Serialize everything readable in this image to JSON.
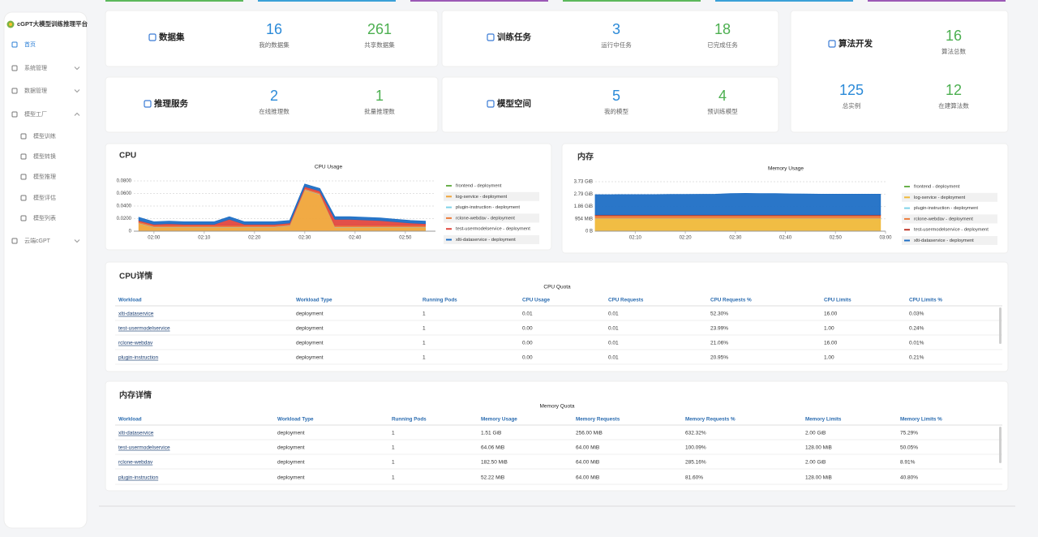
{
  "sidebar": {
    "title": "cGPT大模型训练推理平台",
    "menu": [
      "首页",
      "系统管理",
      "数据管理",
      "模型工厂",
      "模型训练",
      "模型转换",
      "模型推理",
      "模型评估",
      "模型列表",
      "云端cGPT"
    ]
  },
  "stats": [
    {
      "title": "数据集",
      "items": [
        {
          "value": 16,
          "label": "我的数据集"
        },
        {
          "value": 261,
          "label": "共享数据集"
        }
      ]
    },
    {
      "title": "训练任务",
      "items": [
        {
          "value": 3,
          "label": "运行中任务"
        },
        {
          "value": 18,
          "label": "已完成任务"
        }
      ]
    },
    {
      "title": "算法开发",
      "items": [
        {
          "value": 16,
          "label": "算法总数"
        },
        {
          "value": 125,
          "label": "总实例"
        },
        {
          "value": 12,
          "label": "在建算法数"
        }
      ]
    },
    {
      "title": "推理服务",
      "items": [
        {
          "value": 2,
          "label": "在线推理数"
        },
        {
          "value": 1,
          "label": "批量推理数"
        }
      ]
    },
    {
      "title": "模型空间",
      "items": [
        {
          "value": 5,
          "label": "我的模型"
        },
        {
          "value": 4,
          "label": "预训练模型"
        }
      ]
    }
  ],
  "panels": {
    "cpu": "CPU",
    "memory": "内存"
  },
  "chart_data": [
    {
      "type": "area",
      "title": "CPU Usage",
      "stacked": true,
      "grid": true,
      "x": [
        "01:57",
        "02:00",
        "02:03",
        "02:06",
        "02:09",
        "02:12",
        "02:15",
        "02:18",
        "02:21",
        "02:24",
        "02:27",
        "02:30",
        "02:33",
        "02:36",
        "02:39",
        "02:42",
        "02:45",
        "02:48",
        "02:51",
        "02:54"
      ],
      "xlim": [
        "01:56",
        "02:56"
      ],
      "xticks": [
        "02:00",
        "02:10",
        "02:20",
        "02:30",
        "02:40",
        "02:50"
      ],
      "ylim": [
        0,
        0.08
      ],
      "yticks": [
        0,
        {
          "value": 0.02,
          "label": "0.0200"
        },
        {
          "value": 0.04,
          "label": "0.0400"
        },
        {
          "value": 0.06,
          "label": "0.0600"
        },
        {
          "value": 0.08,
          "label": "0.0800"
        }
      ],
      "series": [
        {
          "name": "frontend - deployment",
          "color": "#6ab04c",
          "values": [
            0.0005,
            0.0005,
            0.0005,
            0.0005,
            0.0005,
            0.0005,
            0.0005,
            0.0005,
            0.0005,
            0.0005,
            0.0005,
            0.0005,
            0.0005,
            0.0005,
            0.0005,
            0.0005,
            0.0005,
            0.0005,
            0.0005,
            0.0005
          ]
        },
        {
          "name": "log-service - deployment",
          "color": "#f0a53a",
          "values": [
            0.012,
            0.006,
            0.006,
            0.006,
            0.006,
            0.006,
            0.006,
            0.006,
            0.006,
            0.006,
            0.008,
            0.065,
            0.058,
            0.006,
            0.006,
            0.006,
            0.006,
            0.006,
            0.006,
            0.006
          ]
        },
        {
          "name": "plugin-instruction - deployment",
          "color": "#7fd3e8",
          "values": [
            0.0005,
            0.0005,
            0.0005,
            0.0005,
            0.0005,
            0.0005,
            0.0005,
            0.0005,
            0.0005,
            0.0005,
            0.0005,
            0.0005,
            0.0005,
            0.0005,
            0.0005,
            0.0005,
            0.0005,
            0.0005,
            0.0005,
            0.0005
          ]
        },
        {
          "name": "rclone-webdav - deployment",
          "color": "#ee7d3b",
          "values": [
            0.002,
            0.002,
            0.002,
            0.002,
            0.002,
            0.002,
            0.002,
            0.002,
            0.002,
            0.002,
            0.002,
            0.002,
            0.002,
            0.002,
            0.002,
            0.002,
            0.002,
            0.002,
            0.002,
            0.002
          ]
        },
        {
          "name": "test-usermodelservice - deployment",
          "color": "#e2473f",
          "values": [
            0.002,
            0.002,
            0.003,
            0.002,
            0.002,
            0.002,
            0.01,
            0.002,
            0.002,
            0.002,
            0.002,
            0.003,
            0.003,
            0.01,
            0.01,
            0.009,
            0.008,
            0.006,
            0.004,
            0.003
          ]
        },
        {
          "name": "xlti-dataservice - deployment",
          "color": "#1f6fc5",
          "values": [
            0.005,
            0.004,
            0.004,
            0.004,
            0.004,
            0.004,
            0.004,
            0.004,
            0.004,
            0.004,
            0.004,
            0.004,
            0.004,
            0.004,
            0.004,
            0.004,
            0.004,
            0.004,
            0.004,
            0.004
          ]
        }
      ]
    },
    {
      "type": "area",
      "title": "Memory Usage",
      "stacked": true,
      "grid": true,
      "x": [
        "02:02",
        "02:05",
        "02:08",
        "02:11",
        "02:14",
        "02:17",
        "02:20",
        "02:23",
        "02:26",
        "02:29",
        "02:32",
        "02:35",
        "02:38",
        "02:41",
        "02:44",
        "02:47",
        "02:50",
        "02:53",
        "02:56",
        "02:59"
      ],
      "xlim": [
        "02:02",
        "03:00"
      ],
      "xticks": [
        "02:10",
        "02:20",
        "02:30",
        "02:40",
        "02:50",
        "03:00"
      ],
      "ylim": [
        0,
        3.73
      ],
      "yticks": [
        {
          "value": 0,
          "label": "0 B"
        },
        {
          "value": 0.9316,
          "label": "954 MiB"
        },
        {
          "value": 1.86,
          "label": "1.86 GiB"
        },
        {
          "value": 2.79,
          "label": "2.79 GiB"
        },
        {
          "value": 3.73,
          "label": "3.73 GiB"
        }
      ],
      "series": [
        {
          "name": "frontend - deployment",
          "color": "#6ab04c",
          "values": [
            0.02,
            0.02,
            0.02,
            0.02,
            0.02,
            0.02,
            0.02,
            0.02,
            0.02,
            0.02,
            0.02,
            0.02,
            0.02,
            0.02,
            0.02,
            0.02,
            0.02,
            0.02,
            0.02,
            0.02
          ]
        },
        {
          "name": "log-service - deployment",
          "color": "#f0b93a",
          "values": [
            0.95,
            0.95,
            0.95,
            0.95,
            0.95,
            0.95,
            0.95,
            0.95,
            0.95,
            0.95,
            0.95,
            0.95,
            0.95,
            0.95,
            0.95,
            0.95,
            0.95,
            0.95,
            0.95,
            0.95
          ]
        },
        {
          "name": "plugin-instruction - deployment",
          "color": "#7fd3e8",
          "values": [
            0.02,
            0.02,
            0.02,
            0.02,
            0.02,
            0.02,
            0.02,
            0.02,
            0.02,
            0.02,
            0.02,
            0.02,
            0.02,
            0.02,
            0.02,
            0.02,
            0.02,
            0.02,
            0.02,
            0.02
          ]
        },
        {
          "name": "rclone-webdav - deployment",
          "color": "#ee7d3b",
          "values": [
            0.18,
            0.18,
            0.18,
            0.18,
            0.18,
            0.18,
            0.18,
            0.18,
            0.18,
            0.18,
            0.18,
            0.18,
            0.18,
            0.18,
            0.18,
            0.18,
            0.18,
            0.18,
            0.18,
            0.18
          ]
        },
        {
          "name": "test-usermodelservice - deployment",
          "color": "#c0392b",
          "values": [
            0.06,
            0.06,
            0.06,
            0.06,
            0.06,
            0.06,
            0.06,
            0.06,
            0.06,
            0.06,
            0.06,
            0.06,
            0.06,
            0.06,
            0.06,
            0.06,
            0.06,
            0.06,
            0.06,
            0.06
          ]
        },
        {
          "name": "xlti-dataservice - deployment",
          "color": "#1f6fc5",
          "values": [
            1.52,
            1.52,
            1.53,
            1.53,
            1.53,
            1.54,
            1.54,
            1.55,
            1.56,
            1.6,
            1.62,
            1.61,
            1.6,
            1.58,
            1.57,
            1.56,
            1.56,
            1.56,
            1.56,
            1.56
          ]
        }
      ]
    }
  ],
  "tables": [
    {
      "title": "CPU详情",
      "caption": "CPU Quota",
      "columns": [
        "Workload",
        "Workload Type",
        "Running Pods",
        "CPU Usage",
        "CPU Requests",
        "CPU Requests %",
        "CPU Limits",
        "CPU Limits %"
      ],
      "rows": [
        [
          "xlti-dataservice",
          "deployment",
          "1",
          "0.01",
          "0.01",
          "52.30%",
          "16.00",
          "0.03%"
        ],
        [
          "test-usermodelservice",
          "deployment",
          "1",
          "0.00",
          "0.01",
          "23.99%",
          "1.00",
          "0.24%"
        ],
        [
          "rclone-webdav",
          "deployment",
          "1",
          "0.00",
          "0.01",
          "21.06%",
          "16.00",
          "0.01%"
        ],
        [
          "plugin-instruction",
          "deployment",
          "1",
          "0.00",
          "0.01",
          "20.95%",
          "1.00",
          "0.21%"
        ]
      ]
    },
    {
      "title": "内存详情",
      "caption": "Memory Quota",
      "columns": [
        "Workload",
        "Workload Type",
        "Running Pods",
        "Memory Usage",
        "Memory Requests",
        "Memory Requests %",
        "Memory Limits",
        "Memory Limits %"
      ],
      "rows": [
        [
          "xlti-dataservice",
          "deployment",
          "1",
          "1.51 GiB",
          "256.00 MiB",
          "632.32%",
          "2.00 GiB",
          "75.29%"
        ],
        [
          "test-usermodelservice",
          "deployment",
          "1",
          "64.06 MiB",
          "64.00 MiB",
          "100.09%",
          "128.00 MiB",
          "50.05%"
        ],
        [
          "rclone-webdav",
          "deployment",
          "1",
          "182.50 MiB",
          "64.00 MiB",
          "285.16%",
          "2.00 GiB",
          "8.91%"
        ],
        [
          "plugin-instruction",
          "deployment",
          "1",
          "52.22 MiB",
          "64.00 MiB",
          "81.60%",
          "128.00 MiB",
          "40.80%"
        ]
      ]
    }
  ]
}
